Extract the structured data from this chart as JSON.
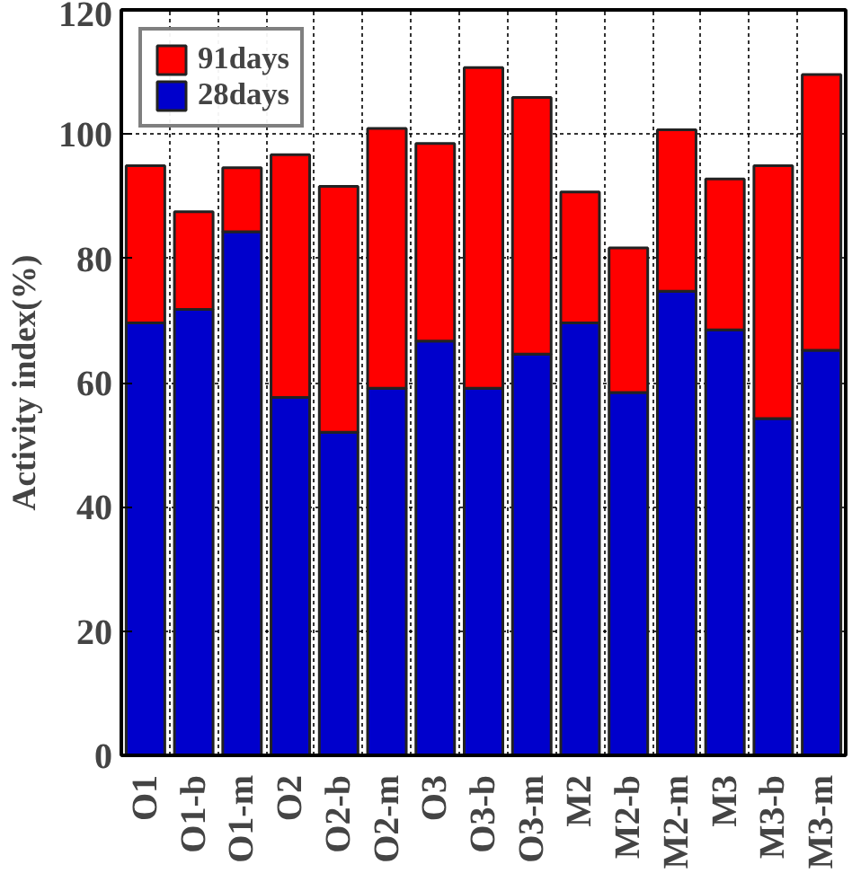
{
  "chart_data": {
    "type": "bar",
    "stacked": true,
    "ylabel": "Activity index(%)",
    "categories": [
      "O1",
      "O1-b",
      "O1-m",
      "O2",
      "O2-b",
      "O2-m",
      "O3",
      "O3-b",
      "O3-m",
      "M2",
      "M2-b",
      "M2-m",
      "M3",
      "M3-b",
      "M3-m"
    ],
    "series": [
      {
        "name": "28days",
        "color": "#0000cc",
        "values": [
          69.6,
          71.8,
          84.3,
          57.6,
          52.0,
          59.1,
          66.7,
          59.1,
          64.6,
          69.6,
          58.4,
          74.7,
          68.5,
          54.2,
          65.2
        ]
      },
      {
        "name": "91days",
        "color": "#ff0000",
        "values": [
          25.3,
          15.7,
          10.3,
          39.1,
          39.6,
          41.8,
          31.8,
          51.6,
          41.3,
          21.1,
          23.3,
          26.0,
          24.3,
          40.7,
          44.4
        ]
      }
    ],
    "ylim": [
      0,
      120
    ],
    "yticks": [
      0,
      20,
      40,
      60,
      80,
      100,
      120
    ],
    "grid": true,
    "legend": "top left"
  }
}
